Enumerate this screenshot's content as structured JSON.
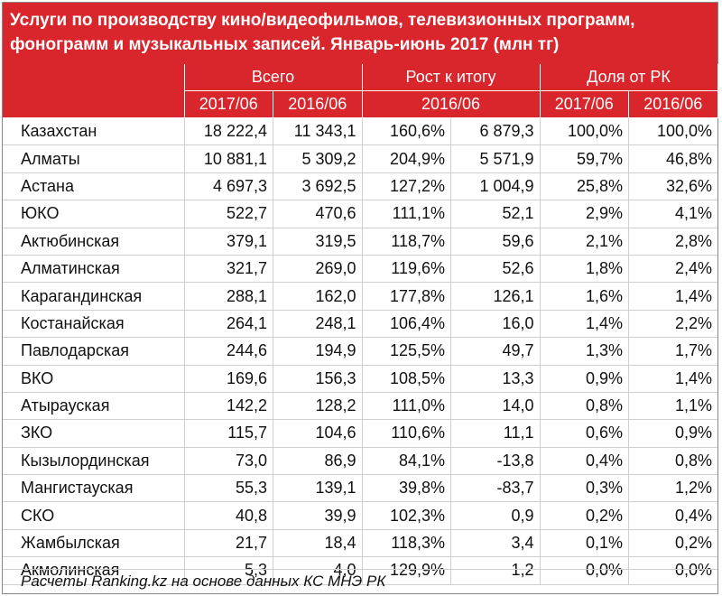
{
  "title": "Услуги по производству кино/видеофильмов, телевизионных программ, фонограмм и музыкальных записей. Январь-июнь 2017 (млн тг)",
  "header": {
    "groups": [
      "Всего",
      "Рост к итогу",
      "Доля от РК"
    ],
    "sub": [
      "2017/06",
      "2016/06",
      "2016/06",
      "2017/06",
      "2016/06"
    ]
  },
  "rows": [
    {
      "name": "Казахстан",
      "v1": "18 222,4",
      "v2": "11 343,1",
      "v3": "160,6%",
      "v4": "6 879,3",
      "v5": "100,0%",
      "v6": "100,0%"
    },
    {
      "name": "Алматы",
      "v1": "10 881,1",
      "v2": "5 309,2",
      "v3": "204,9%",
      "v4": "5 571,9",
      "v5": "59,7%",
      "v6": "46,8%"
    },
    {
      "name": "Астана",
      "v1": "4 697,3",
      "v2": "3 692,5",
      "v3": "127,2%",
      "v4": "1 004,9",
      "v5": "25,8%",
      "v6": "32,6%"
    },
    {
      "name": "ЮКО",
      "v1": "522,7",
      "v2": "470,6",
      "v3": "111,1%",
      "v4": "52,1",
      "v5": "2,9%",
      "v6": "4,1%"
    },
    {
      "name": "Актюбинская",
      "v1": "379,1",
      "v2": "319,5",
      "v3": "118,7%",
      "v4": "59,6",
      "v5": "2,1%",
      "v6": "2,8%"
    },
    {
      "name": "Алматинская",
      "v1": "321,7",
      "v2": "269,0",
      "v3": "119,6%",
      "v4": "52,6",
      "v5": "1,8%",
      "v6": "2,4%"
    },
    {
      "name": "Карагандинская",
      "v1": "288,1",
      "v2": "162,0",
      "v3": "177,8%",
      "v4": "126,1",
      "v5": "1,6%",
      "v6": "1,4%"
    },
    {
      "name": "Костанайская",
      "v1": "264,1",
      "v2": "248,1",
      "v3": "106,4%",
      "v4": "16,0",
      "v5": "1,4%",
      "v6": "2,2%"
    },
    {
      "name": "Павлодарская",
      "v1": "244,6",
      "v2": "194,9",
      "v3": "125,5%",
      "v4": "49,7",
      "v5": "1,3%",
      "v6": "1,7%"
    },
    {
      "name": "ВКО",
      "v1": "169,6",
      "v2": "156,3",
      "v3": "108,5%",
      "v4": "13,3",
      "v5": "0,9%",
      "v6": "1,4%"
    },
    {
      "name": "Атырауская",
      "v1": "142,2",
      "v2": "128,2",
      "v3": "111,0%",
      "v4": "14,0",
      "v5": "0,8%",
      "v6": "1,1%"
    },
    {
      "name": "ЗКО",
      "v1": "115,7",
      "v2": "104,6",
      "v3": "110,6%",
      "v4": "11,1",
      "v5": "0,6%",
      "v6": "0,9%"
    },
    {
      "name": "Кызылординская",
      "v1": "73,0",
      "v2": "86,9",
      "v3": "84,1%",
      "v4": "-13,8",
      "v5": "0,4%",
      "v6": "0,8%"
    },
    {
      "name": "Мангистауская",
      "v1": "55,3",
      "v2": "139,1",
      "v3": "39,8%",
      "v4": "-83,7",
      "v5": "0,3%",
      "v6": "1,2%"
    },
    {
      "name": "СКО",
      "v1": "40,8",
      "v2": "39,9",
      "v3": "102,3%",
      "v4": "0,9",
      "v5": "0,2%",
      "v6": "0,4%"
    },
    {
      "name": "Жамбылская",
      "v1": "21,7",
      "v2": "18,4",
      "v3": "118,3%",
      "v4": "3,4",
      "v5": "0,1%",
      "v6": "0,2%"
    },
    {
      "name": "Акмолинская",
      "v1": "5,3",
      "v2": "4,0",
      "v3": "129,9%",
      "v4": "1,2",
      "v5": "0,0%",
      "v6": "0,0%"
    }
  ],
  "footer": "Расчеты Ranking.kz на основе данных КС МНЭ РК",
  "colors": {
    "header_red": "#d8262c",
    "header_text": "#ffffff",
    "grid": "#cfcfcf"
  }
}
